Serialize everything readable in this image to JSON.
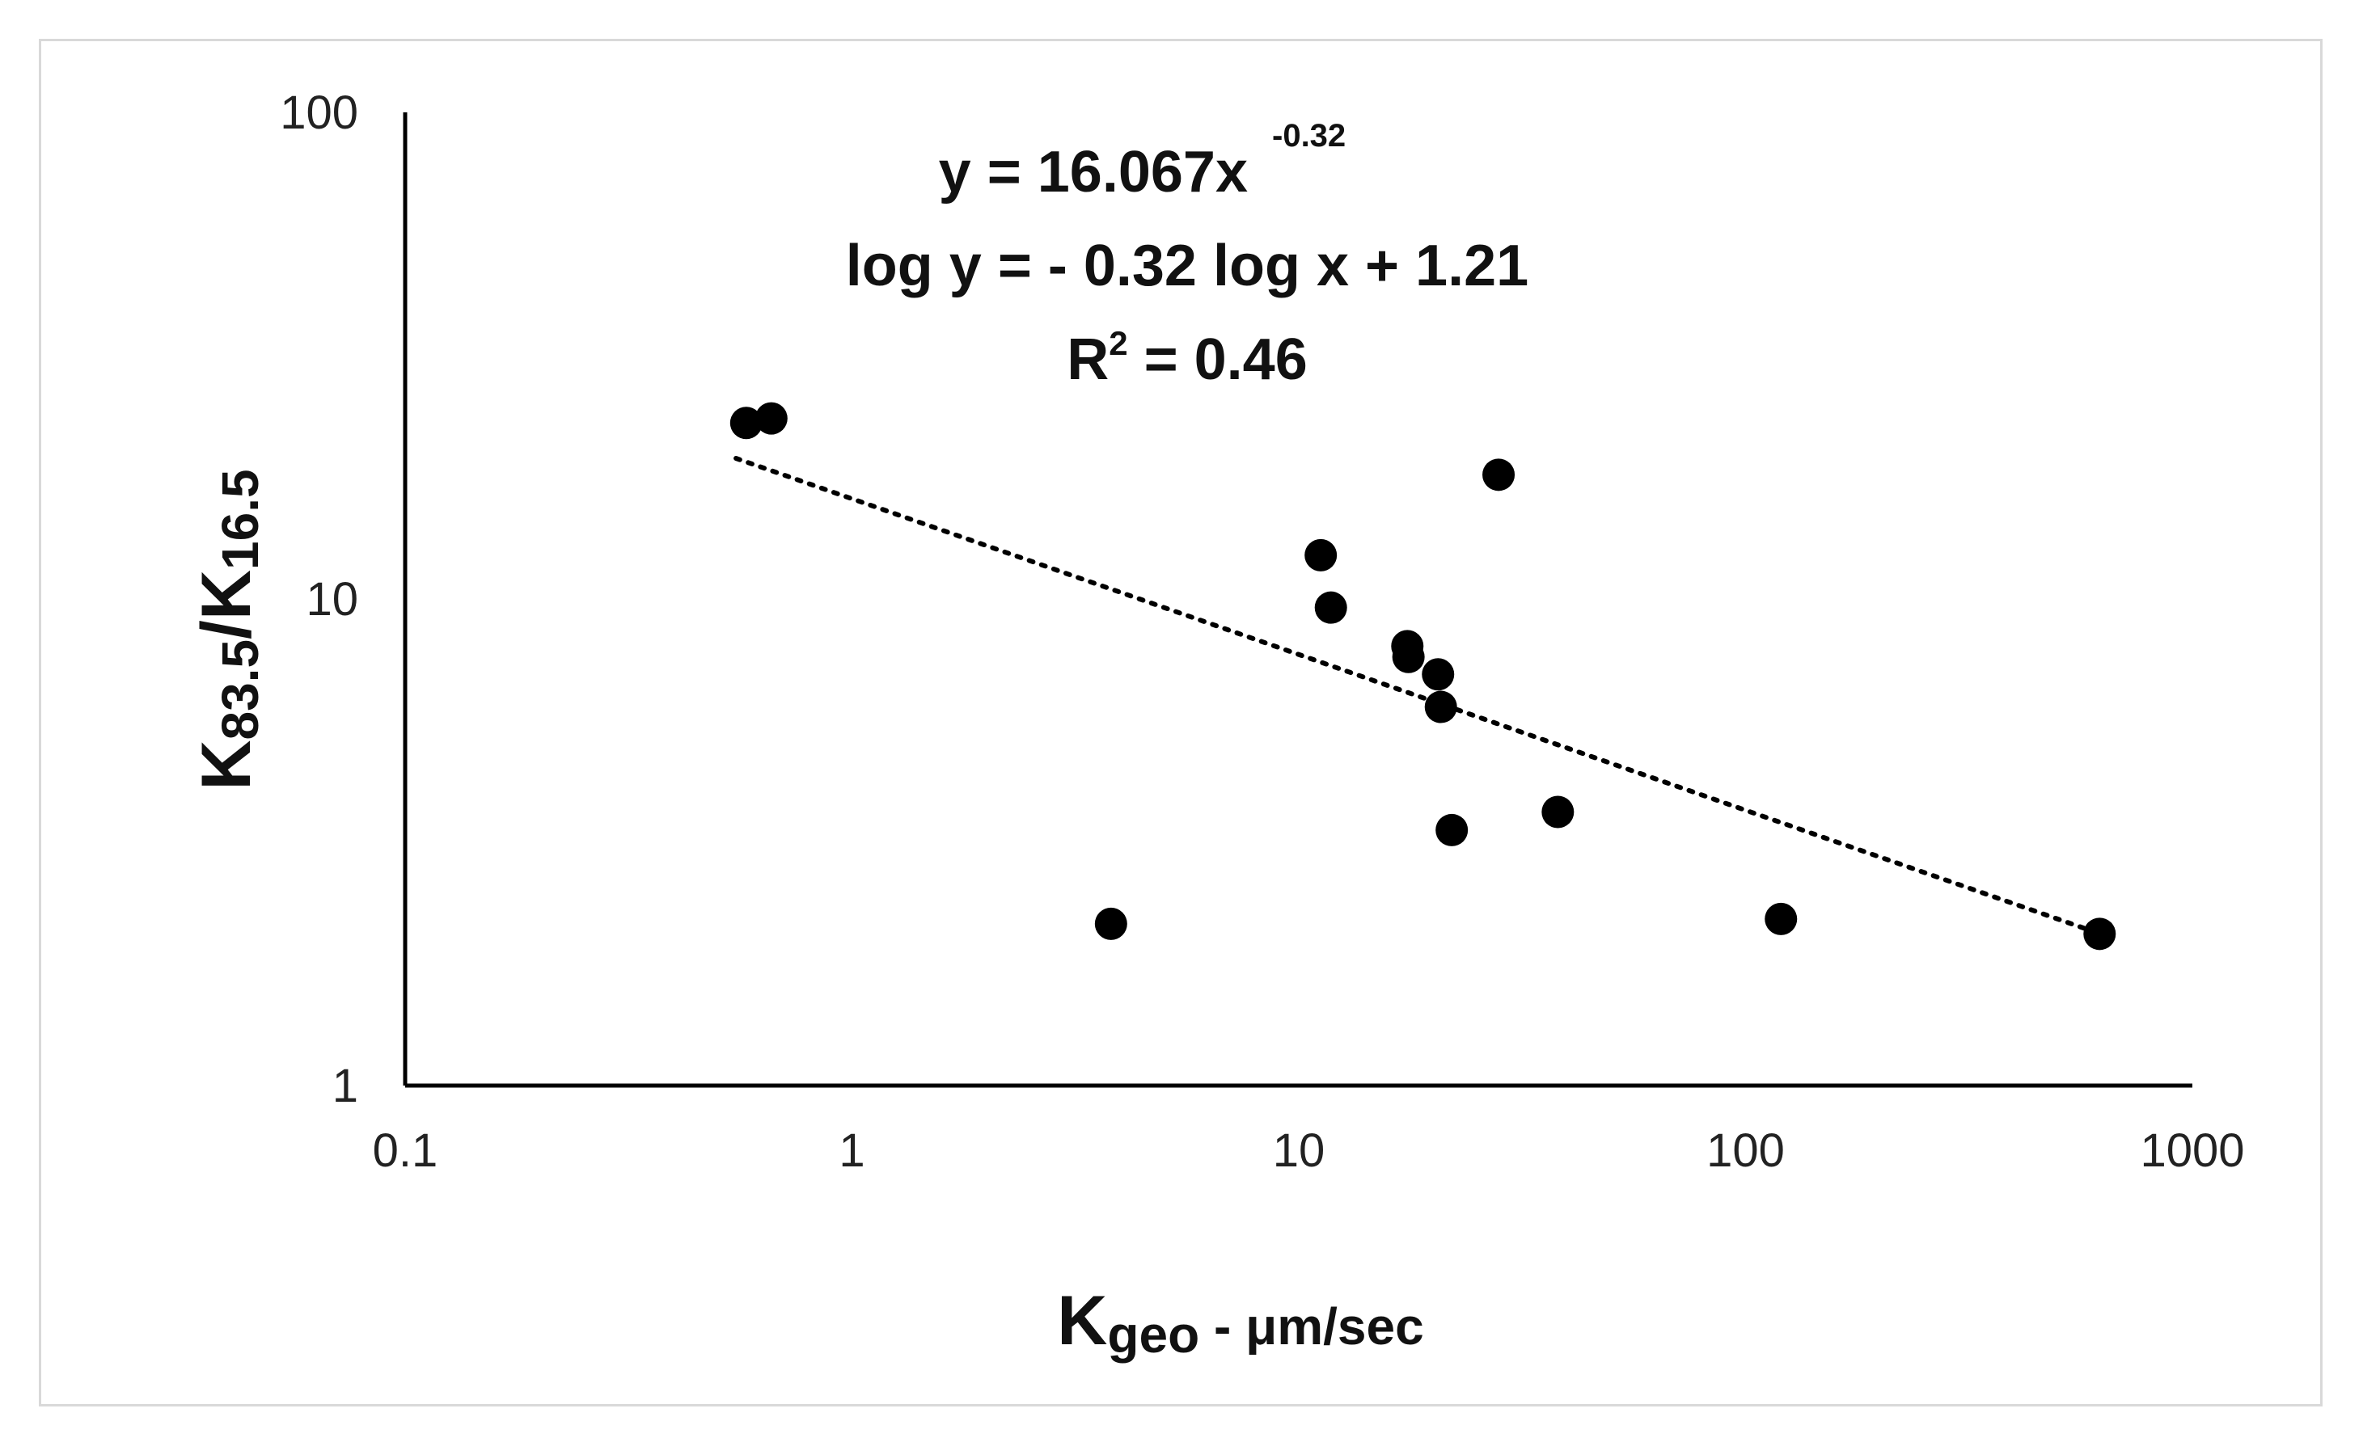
{
  "chart_data": {
    "type": "scatter",
    "x_scale": "log",
    "y_scale": "log",
    "xlim": [
      0.1,
      1000
    ],
    "ylim": [
      1,
      100
    ],
    "x_ticks": [
      "0.1",
      "1",
      "10",
      "100",
      "1000"
    ],
    "y_ticks": [
      "1",
      "10",
      "100"
    ],
    "xlabel": {
      "main": "K",
      "sub": "geo",
      "suffix": " - μm/sec"
    },
    "ylabel": {
      "main1": "K",
      "sub1": "83.5",
      "slash": "/K",
      "sub2": "16.5"
    },
    "points": [
      {
        "x": 0.58,
        "y": 23.0
      },
      {
        "x": 0.66,
        "y": 23.5
      },
      {
        "x": 3.8,
        "y": 2.15
      },
      {
        "x": 11.2,
        "y": 12.3
      },
      {
        "x": 11.8,
        "y": 9.6
      },
      {
        "x": 17.5,
        "y": 8.0
      },
      {
        "x": 17.6,
        "y": 7.6
      },
      {
        "x": 20.5,
        "y": 7.0
      },
      {
        "x": 20.8,
        "y": 6.0
      },
      {
        "x": 22.0,
        "y": 3.35
      },
      {
        "x": 28.0,
        "y": 18.0
      },
      {
        "x": 38.0,
        "y": 3.65
      },
      {
        "x": 120.0,
        "y": 2.2
      },
      {
        "x": 620.0,
        "y": 2.05
      }
    ],
    "trendline": {
      "type": "power",
      "coef": 16.067,
      "exp": -0.32,
      "x_range": [
        0.55,
        620
      ],
      "style": "dotted"
    },
    "equation": {
      "line1_main": "y = 16.067x",
      "line1_sup": "-0.32",
      "line2": "log y = - 0.32  log x + 1.21",
      "line3_main": "R",
      "line3_sup": "2",
      "line3_rest": " = 0.46"
    },
    "colors": {
      "points": "#000000",
      "axes": "#000000",
      "trend": "#000000"
    }
  }
}
